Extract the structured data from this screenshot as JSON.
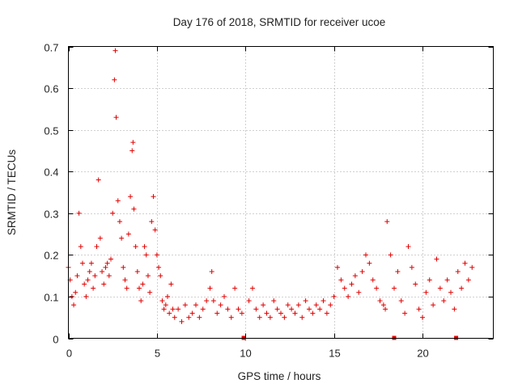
{
  "chart_data": {
    "type": "scatter",
    "title": "Day 176 of 2018, SRMTID for receiver ucoe",
    "xlabel": "GPS time / hours",
    "ylabel": "SRMTID / TECUs",
    "xlim": [
      0,
      24
    ],
    "ylim": [
      0,
      0.7
    ],
    "xticks": [
      0,
      5,
      10,
      15,
      20
    ],
    "xtick_labels": [
      "0",
      "5",
      "10",
      "15",
      "20"
    ],
    "yticks": [
      0,
      0.1,
      0.2,
      0.3,
      0.4,
      0.5,
      0.6,
      0.7
    ],
    "ytick_labels": [
      "0",
      "0.1",
      "0.2",
      "0.3",
      "0.4",
      "0.5",
      "0.6",
      "0.7"
    ],
    "grid": true,
    "marker": "+",
    "color": "#e00000",
    "series": [
      {
        "name": "SRMTID",
        "x": [
          0.0,
          0.1,
          0.2,
          0.3,
          0.4,
          0.5,
          0.6,
          0.7,
          0.8,
          0.9,
          1.0,
          1.1,
          1.2,
          1.3,
          1.4,
          1.5,
          1.6,
          1.7,
          1.8,
          1.9,
          2.0,
          2.1,
          2.2,
          2.3,
          2.4,
          2.5,
          2.6,
          2.65,
          2.7,
          2.8,
          2.9,
          3.0,
          3.1,
          3.2,
          3.3,
          3.4,
          3.5,
          3.6,
          3.65,
          3.7,
          3.8,
          3.9,
          4.0,
          4.1,
          4.2,
          4.3,
          4.4,
          4.5,
          4.6,
          4.7,
          4.8,
          4.9,
          5.0,
          5.1,
          5.2,
          5.3,
          5.4,
          5.5,
          5.6,
          5.7,
          5.8,
          5.9,
          6.0,
          6.2,
          6.4,
          6.6,
          6.8,
          7.0,
          7.2,
          7.4,
          7.6,
          7.8,
          8.0,
          8.1,
          8.2,
          8.4,
          8.6,
          8.8,
          9.0,
          9.2,
          9.4,
          9.6,
          9.8,
          10.0,
          10.2,
          10.4,
          10.6,
          10.8,
          11.0,
          11.2,
          11.4,
          11.6,
          11.8,
          12.0,
          12.2,
          12.4,
          12.6,
          12.8,
          13.0,
          13.2,
          13.4,
          13.6,
          13.8,
          14.0,
          14.2,
          14.4,
          14.6,
          14.8,
          15.0,
          15.2,
          15.4,
          15.6,
          15.8,
          16.0,
          16.2,
          16.4,
          16.6,
          16.8,
          17.0,
          17.2,
          17.4,
          17.6,
          17.8,
          17.9,
          18.0,
          18.2,
          18.4,
          18.6,
          18.8,
          19.0,
          19.2,
          19.4,
          19.6,
          19.8,
          20.0,
          20.2,
          20.4,
          20.6,
          20.8,
          21.0,
          21.2,
          21.4,
          21.6,
          21.8,
          22.0,
          22.2,
          22.4,
          22.6,
          22.8
        ],
        "y": [
          0.17,
          0.14,
          0.1,
          0.08,
          0.11,
          0.15,
          0.3,
          0.22,
          0.18,
          0.13,
          0.1,
          0.14,
          0.16,
          0.18,
          0.12,
          0.15,
          0.22,
          0.38,
          0.24,
          0.16,
          0.13,
          0.17,
          0.18,
          0.15,
          0.19,
          0.3,
          0.62,
          0.69,
          0.53,
          0.33,
          0.28,
          0.24,
          0.17,
          0.14,
          0.12,
          0.25,
          0.34,
          0.45,
          0.47,
          0.31,
          0.22,
          0.16,
          0.12,
          0.09,
          0.13,
          0.22,
          0.2,
          0.15,
          0.11,
          0.28,
          0.34,
          0.26,
          0.2,
          0.17,
          0.15,
          0.09,
          0.07,
          0.08,
          0.1,
          0.06,
          0.13,
          0.07,
          0.05,
          0.07,
          0.04,
          0.08,
          0.05,
          0.06,
          0.08,
          0.05,
          0.07,
          0.09,
          0.12,
          0.16,
          0.09,
          0.06,
          0.08,
          0.1,
          0.07,
          0.05,
          0.12,
          0.07,
          0.06,
          0.0,
          0.09,
          0.12,
          0.07,
          0.05,
          0.08,
          0.06,
          0.05,
          0.09,
          0.07,
          0.06,
          0.05,
          0.08,
          0.07,
          0.06,
          0.08,
          0.05,
          0.09,
          0.07,
          0.06,
          0.08,
          0.07,
          0.09,
          0.06,
          0.08,
          0.1,
          0.17,
          0.14,
          0.12,
          0.1,
          0.13,
          0.15,
          0.11,
          0.16,
          0.2,
          0.18,
          0.14,
          0.12,
          0.09,
          0.08,
          0.07,
          0.28,
          0.2,
          0.12,
          0.16,
          0.09,
          0.06,
          0.22,
          0.17,
          0.13,
          0.07,
          0.05,
          0.11,
          0.14,
          0.08,
          0.19,
          0.12,
          0.09,
          0.14,
          0.11,
          0.07,
          0.16,
          0.12,
          0.18,
          0.14,
          0.17
        ]
      }
    ],
    "baseline_marks_x": [
      9.9,
      18.4,
      21.9
    ]
  }
}
